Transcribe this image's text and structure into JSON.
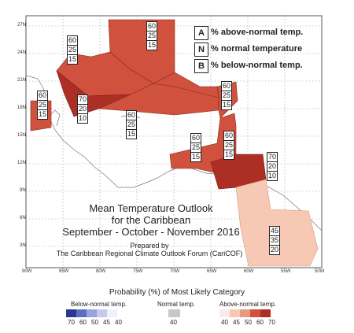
{
  "colors": {
    "above_60": "#d0513e",
    "above_70": "#ad2e25",
    "above_45": "#f7c9b5",
    "normal_40": "#c8c8c8",
    "below_40": "#eef0fb",
    "below_45": "#c6cbed",
    "below_50": "#9aa3dd",
    "below_60": "#5c6ec2",
    "below_70": "#29388f",
    "above_40": "#fbeaea",
    "above_50": "#e79a80"
  },
  "legend_keys": [
    {
      "key": "A",
      "label": "% above-normal temp."
    },
    {
      "key": "N",
      "label": "% normal temperature"
    },
    {
      "key": "B",
      "label": "% below-normal temp."
    }
  ],
  "title": {
    "line1": "Mean Temperature Outlook",
    "line2": "for the Caribbean",
    "line3": "September - October - November 2016"
  },
  "prepared": {
    "line1": "Prepared by",
    "line2": "The Caribbean Regional Climate Outlook Forum (CariCOF)"
  },
  "y_ticks": [
    "27N",
    "24N",
    "21N",
    "18N",
    "15N",
    "12N",
    "9N",
    "6N",
    "3N"
  ],
  "x_ticks": [
    "90W",
    "85W",
    "80W",
    "75W",
    "70W",
    "65W",
    "60W",
    "55W",
    "50W"
  ],
  "caption": "Probability (%) of Most Likely Category",
  "color_scale": {
    "below_heading": "Below-normal temp.",
    "normal_heading": "Normal temp.",
    "above_heading": "Above-normal temp.",
    "below_values": [
      "70",
      "60",
      "50",
      "45",
      "40"
    ],
    "normal_values": [
      "40"
    ],
    "above_values": [
      "40",
      "45",
      "50",
      "60",
      "70"
    ]
  },
  "stacks": [
    {
      "id": "bahamas-north",
      "values": [
        "60",
        "25",
        "15"
      ]
    },
    {
      "id": "bahamas-west",
      "values": [
        "60",
        "25",
        "15"
      ]
    },
    {
      "id": "yucatan",
      "values": [
        "60",
        "25",
        "15"
      ]
    },
    {
      "id": "cuba",
      "values": [
        "70",
        "20",
        "10"
      ]
    },
    {
      "id": "jamaica-haiti",
      "values": [
        "60",
        "25",
        "15"
      ]
    },
    {
      "id": "puerto-rico",
      "values": [
        "60",
        "25",
        "15"
      ]
    },
    {
      "id": "eastern-caribbean",
      "values": [
        "60",
        "25",
        "15"
      ]
    },
    {
      "id": "southern-caribbean",
      "values": [
        "60",
        "25",
        "15"
      ]
    },
    {
      "id": "trinidad",
      "values": [
        "70",
        "20",
        "10"
      ]
    },
    {
      "id": "guianas",
      "values": [
        "45",
        "35",
        "20"
      ]
    }
  ]
}
